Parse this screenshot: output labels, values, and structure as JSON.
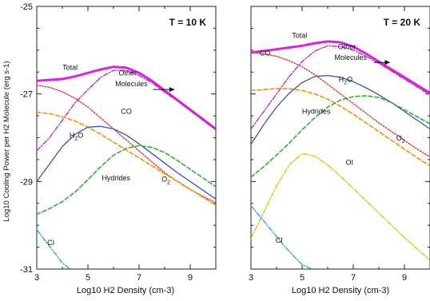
{
  "chart_data": [
    {
      "type": "line",
      "panel_title": "T = 10 K",
      "xlabel": "Log10 H2 Density (cm-3)",
      "ylabel": "Log10 Cooling Power per H2 Molecule (erg s-1)",
      "xlim": [
        3,
        10
      ],
      "ylim": [
        -31,
        -25
      ],
      "xticks": [
        "3",
        "5",
        "7",
        "9"
      ],
      "yticks": [
        "-25",
        "-27",
        "-29",
        "-31"
      ],
      "series": [
        {
          "name": "Total",
          "color": "#e020e0",
          "style": "solid-thick",
          "x": [
            3,
            3.5,
            4,
            4.5,
            5,
            5.5,
            6,
            6.5,
            7,
            7.5,
            8,
            8.5,
            9,
            9.5,
            10
          ],
          "y": [
            -26.7,
            -26.68,
            -26.66,
            -26.6,
            -26.52,
            -26.44,
            -26.38,
            -26.4,
            -26.52,
            -26.7,
            -26.92,
            -27.14,
            -27.36,
            -27.58,
            -27.8
          ]
        },
        {
          "name": "Other Molecules",
          "color": "#b020d0",
          "style": "dashdot",
          "x": [
            3,
            3.5,
            4,
            4.5,
            5,
            5.5,
            6,
            6.5,
            7,
            7.5,
            8,
            8.5,
            9,
            9.5,
            10
          ],
          "y": [
            -28.3,
            -28.0,
            -27.6,
            -27.2,
            -26.9,
            -26.62,
            -26.46,
            -26.46,
            -26.58,
            -26.74,
            -26.96,
            -27.16,
            -27.38,
            -27.6,
            -27.82
          ]
        },
        {
          "name": "CO",
          "color": "#e03030",
          "style": "dotted",
          "x": [
            3,
            3.5,
            4,
            4.5,
            5,
            5.5,
            6,
            6.5,
            7,
            7.5,
            8,
            8.5,
            9,
            9.5,
            10
          ],
          "y": [
            -26.8,
            -26.85,
            -26.95,
            -27.1,
            -27.3,
            -27.55,
            -27.8,
            -28.05,
            -28.3,
            -28.55,
            -28.8,
            -29.0,
            -29.18,
            -29.34,
            -29.48
          ]
        },
        {
          "name": "O2",
          "color": "#ff8c00",
          "style": "dashed",
          "x": [
            3,
            3.5,
            4,
            4.5,
            5,
            5.5,
            6,
            6.5,
            7,
            7.5,
            8,
            8.5,
            9,
            9.5,
            10
          ],
          "y": [
            -27.42,
            -27.45,
            -27.52,
            -27.62,
            -27.76,
            -27.92,
            -28.1,
            -28.28,
            -28.46,
            -28.64,
            -28.82,
            -29.0,
            -29.18,
            -29.36,
            -29.54
          ]
        },
        {
          "name": "H2O",
          "color": "#3a4ec8",
          "style": "solid",
          "x": [
            3,
            3.5,
            4,
            4.5,
            5,
            5.5,
            6,
            6.5,
            7,
            7.5,
            8,
            8.5,
            9,
            9.5,
            10
          ],
          "y": [
            -29.0,
            -28.6,
            -28.2,
            -27.92,
            -27.76,
            -27.74,
            -27.8,
            -27.94,
            -28.14,
            -28.36,
            -28.58,
            -28.8,
            -29.0,
            -29.2,
            -29.4
          ]
        },
        {
          "name": "Hydrides",
          "color": "#30b030",
          "style": "dashed",
          "x": [
            3,
            3.5,
            4,
            4.5,
            5,
            5.5,
            6,
            6.5,
            7,
            7.5,
            8,
            8.5,
            9,
            9.5,
            10
          ],
          "y": [
            -29.75,
            -29.62,
            -29.46,
            -29.24,
            -28.96,
            -28.66,
            -28.4,
            -28.24,
            -28.18,
            -28.22,
            -28.34,
            -28.52,
            -28.72,
            -28.92,
            -29.12
          ]
        },
        {
          "name": "CI",
          "color": "#20a0e0",
          "style": "dashdot",
          "x": [
            3,
            3.5,
            4,
            4.3
          ],
          "y": [
            -30.1,
            -30.48,
            -30.86,
            -31.0
          ]
        }
      ],
      "annotations": [
        {
          "text": "Total",
          "x": 4.3,
          "y": -26.45
        },
        {
          "text": "Other",
          "x": 6.55,
          "y": -26.58
        },
        {
          "text": "Molecules",
          "x": 6.7,
          "y": -26.82
        },
        {
          "text": "CO",
          "x": 6.5,
          "y": -27.45
        },
        {
          "text": "H2O",
          "x": 4.55,
          "y": -28.0
        },
        {
          "text": "Hydrides",
          "x": 6.1,
          "y": -28.98
        },
        {
          "text": "O2",
          "x": 8.05,
          "y": -29.0
        },
        {
          "text": "CI",
          "x": 3.55,
          "y": -30.45
        }
      ],
      "arrow": {
        "from": [
          7.55,
          -26.9
        ],
        "to": [
          8.4,
          -26.9
        ]
      }
    },
    {
      "type": "line",
      "panel_title": "T = 20 K",
      "xlabel": "Log10 H2 Density (cm-3)",
      "ylabel": "",
      "xlim": [
        3,
        10
      ],
      "ylim": [
        -31,
        -25
      ],
      "xticks": [
        "3",
        "5",
        "7",
        "9"
      ],
      "yticks": [],
      "series": [
        {
          "name": "Total",
          "color": "#e020e0",
          "style": "solid-thick",
          "x": [
            3,
            3.5,
            4,
            4.5,
            5,
            5.5,
            6,
            6.5,
            7,
            7.5,
            8,
            8.5,
            9,
            9.5,
            10
          ],
          "y": [
            -26.05,
            -26.02,
            -25.98,
            -25.94,
            -25.9,
            -25.84,
            -25.8,
            -25.82,
            -25.92,
            -26.08,
            -26.26,
            -26.44,
            -26.62,
            -26.8,
            -26.98
          ]
        },
        {
          "name": "Other Molecules",
          "color": "#b020d0",
          "style": "dashdot",
          "x": [
            3,
            3.5,
            4,
            4.5,
            5,
            5.5,
            6,
            6.5,
            7,
            7.5,
            8,
            8.5,
            9,
            9.5,
            10
          ],
          "y": [
            -27.8,
            -27.4,
            -27.0,
            -26.6,
            -26.26,
            -26.02,
            -25.9,
            -25.92,
            -26.0,
            -26.14,
            -26.3,
            -26.48,
            -26.66,
            -26.84,
            -27.02
          ]
        },
        {
          "name": "CO",
          "color": "#e03030",
          "style": "dotted",
          "x": [
            3,
            3.5,
            4,
            4.5,
            5,
            5.5,
            6,
            6.5,
            7,
            7.5,
            8,
            8.5,
            9,
            9.5,
            10
          ],
          "y": [
            -26.05,
            -26.08,
            -26.14,
            -26.24,
            -26.38,
            -26.56,
            -26.78,
            -27.0,
            -27.22,
            -27.44,
            -27.66,
            -27.86,
            -28.06,
            -28.26,
            -28.44
          ]
        },
        {
          "name": "O2",
          "color": "#ff8c00",
          "style": "dashed",
          "x": [
            3,
            3.5,
            4,
            4.5,
            5,
            5.5,
            6,
            6.5,
            7,
            7.5,
            8,
            8.5,
            9,
            9.5,
            10
          ],
          "y": [
            -26.92,
            -26.9,
            -26.88,
            -26.88,
            -26.92,
            -27.0,
            -27.12,
            -27.28,
            -27.46,
            -27.66,
            -27.86,
            -28.06,
            -28.26,
            -28.46,
            -28.64
          ]
        },
        {
          "name": "H2O",
          "color": "#3a4ec8",
          "style": "solid",
          "x": [
            3,
            3.5,
            4,
            4.5,
            5,
            5.5,
            6,
            6.5,
            7,
            7.5,
            8,
            8.5,
            9,
            9.5,
            10
          ],
          "y": [
            -28.15,
            -27.7,
            -27.3,
            -26.98,
            -26.74,
            -26.6,
            -26.58,
            -26.62,
            -26.72,
            -26.86,
            -27.02,
            -27.2,
            -27.4,
            -27.6,
            -27.8
          ]
        },
        {
          "name": "Hydrides",
          "color": "#30b030",
          "style": "dashed",
          "x": [
            3,
            3.5,
            4,
            4.5,
            5,
            5.5,
            6,
            6.5,
            7,
            7.5,
            8,
            8.5,
            9,
            9.5,
            10
          ],
          "y": [
            -28.9,
            -28.66,
            -28.4,
            -28.12,
            -27.82,
            -27.54,
            -27.3,
            -27.14,
            -27.06,
            -27.04,
            -27.08,
            -27.2,
            -27.36,
            -27.52,
            -27.68
          ]
        },
        {
          "name": "OI",
          "color": "#c8c800",
          "style": "dashdot",
          "x": [
            3,
            3.5,
            4,
            4.5,
            5,
            5.5,
            6,
            6.5,
            7,
            7.5,
            8,
            8.5,
            9,
            9.5,
            10
          ],
          "y": [
            -30.3,
            -29.7,
            -29.1,
            -28.62,
            -28.36,
            -28.42,
            -28.62,
            -28.88,
            -29.16,
            -29.44,
            -29.72,
            -30.0,
            -30.28,
            -30.54,
            -30.8
          ]
        },
        {
          "name": "CI",
          "color": "#20a0e0",
          "style": "dashdot",
          "x": [
            3,
            3.5,
            4,
            4.5,
            5,
            5.4
          ],
          "y": [
            -29.55,
            -29.9,
            -30.26,
            -30.6,
            -30.9,
            -31.0
          ]
        }
      ],
      "annotations": [
        {
          "text": "Total",
          "x": 4.9,
          "y": -25.72
        },
        {
          "text": "CO",
          "x": 3.55,
          "y": -26.12
        },
        {
          "text": "Other",
          "x": 6.75,
          "y": -25.98
        },
        {
          "text": "Molecules",
          "x": 6.9,
          "y": -26.22
        },
        {
          "text": "H2O",
          "x": 6.7,
          "y": -26.72
        },
        {
          "text": "Hydrides",
          "x": 5.55,
          "y": -27.45
        },
        {
          "text": "O2",
          "x": 8.85,
          "y": -28.06
        },
        {
          "text": "OI",
          "x": 6.85,
          "y": -28.62
        },
        {
          "text": "CI",
          "x": 4.1,
          "y": -30.4
        }
      ],
      "arrow": {
        "from": [
          7.8,
          -26.28
        ],
        "to": [
          8.45,
          -26.28
        ]
      }
    }
  ]
}
